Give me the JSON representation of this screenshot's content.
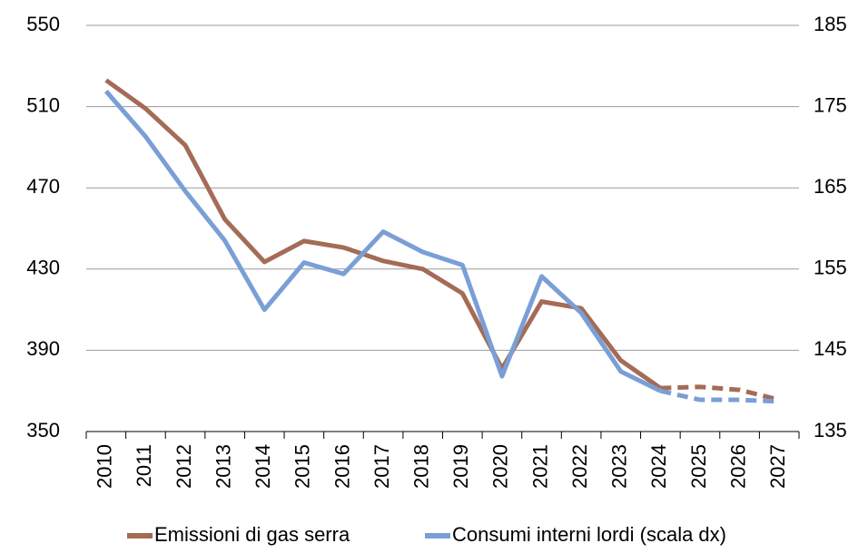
{
  "chart_data": {
    "type": "line",
    "categories": [
      "2010",
      "2011",
      "2012",
      "2013",
      "2014",
      "2015",
      "2016",
      "2017",
      "2018",
      "2019",
      "2020",
      "2021",
      "2022",
      "2023",
      "2024",
      "2025",
      "2026",
      "2027"
    ],
    "series": [
      {
        "name": "Emissioni di gas serra",
        "color": "#a46b57",
        "axis": "y",
        "values": [
          523,
          509,
          491,
          454.5,
          433.5,
          443.8,
          440.6,
          434,
          430,
          418,
          381,
          414,
          410.7,
          385,
          371.4,
          372,
          370.5,
          365.6
        ]
      },
      {
        "name": "Consumi interni lordi (scala dx)",
        "color": "#7a9fd6",
        "axis": "y2",
        "values": [
          176.9,
          171.3,
          164.6,
          158.5,
          150,
          155.8,
          154.4,
          159.6,
          157.1,
          155.5,
          141.8,
          154.1,
          149.6,
          142.4,
          140,
          138.9,
          138.9,
          138.7
        ]
      }
    ],
    "dashed_from": "2024",
    "ylim": [
      350,
      550
    ],
    "yticks": [
      350,
      390,
      430,
      470,
      510,
      550
    ],
    "y2lim": [
      135,
      185
    ],
    "y2ticks": [
      135,
      145,
      155,
      165,
      175,
      185
    ],
    "grid": true,
    "legend": "bottom"
  }
}
